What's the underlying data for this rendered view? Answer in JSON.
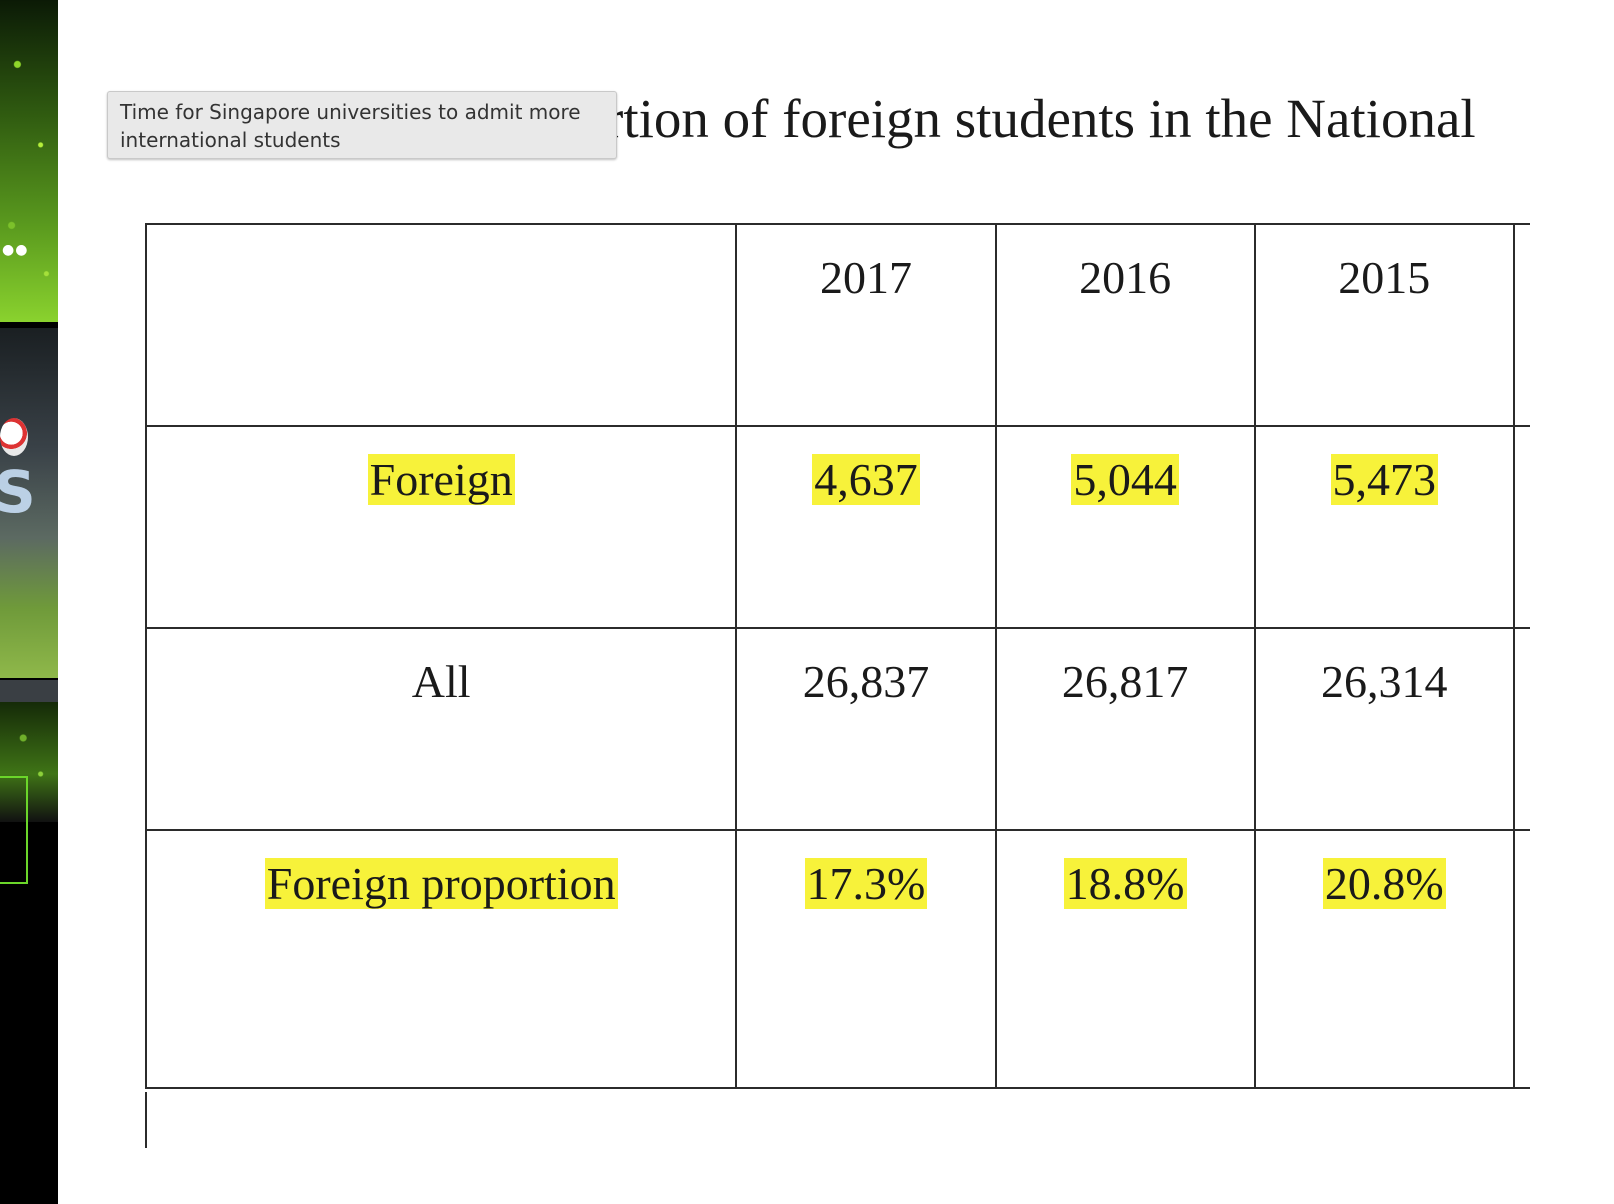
{
  "document": {
    "title_visible": "rtion of foreign students in the National"
  },
  "tooltip": {
    "text": "Time for Singapore universities to admit more international students"
  },
  "table": {
    "columns": [
      "",
      "2017",
      "2016",
      "2015"
    ],
    "rows": [
      {
        "label": "Foreign",
        "values": [
          "4,637",
          "5,044",
          "5,473"
        ],
        "highlighted": true
      },
      {
        "label": "All",
        "values": [
          "26,837",
          "26,817",
          "26,314"
        ],
        "highlighted": false
      },
      {
        "label": "Foreign proportion",
        "values": [
          "17.3%",
          "18.8%",
          "20.8%"
        ],
        "highlighted": true
      }
    ]
  },
  "colors": {
    "highlight": "#f7f23a",
    "tooltip_bg": "#e9e9e9",
    "table_border": "#2b2b2b"
  }
}
